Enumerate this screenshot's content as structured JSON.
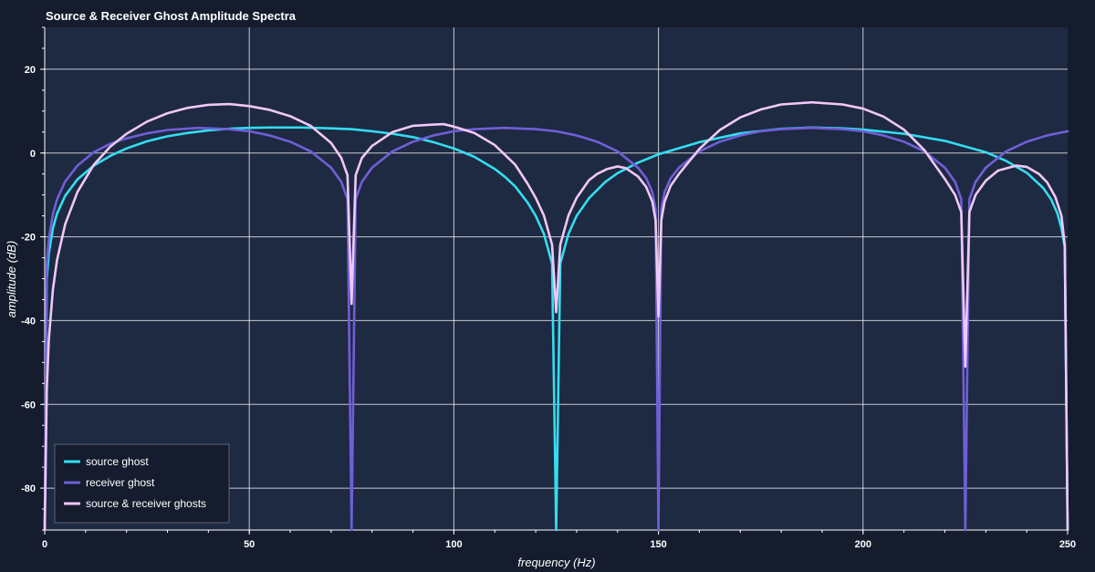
{
  "chart_data": {
    "type": "line",
    "title": "Source & Receiver Ghost Amplitude Spectra",
    "xlabel": "frequency (Hz)",
    "ylabel": "amplitude (dB)",
    "xlim": [
      0,
      250
    ],
    "ylim": [
      -90,
      30
    ],
    "xticks": [
      0,
      50,
      100,
      150,
      200,
      250
    ],
    "yticks": [
      20,
      0,
      -20,
      -40,
      -60,
      -80
    ],
    "x_tick_labels": [
      "0",
      "50",
      "100",
      "150",
      "200",
      "250"
    ],
    "y_tick_labels": [
      "20",
      "0",
      "-20",
      "-40",
      "-60",
      "-80"
    ],
    "grid": true,
    "legend_position": "bottom-left",
    "colors": {
      "background": "#151c2e",
      "plot_background": "#1e2942",
      "grid": "#ffffff",
      "text": "#ffffff"
    },
    "series": [
      {
        "name": "source ghost",
        "color": "#33ddf0",
        "x": [
          0,
          0.5,
          1,
          2,
          3,
          5,
          8,
          12,
          16,
          20,
          25,
          30,
          35,
          40,
          45,
          50,
          55,
          62.5,
          70,
          75,
          80,
          85,
          90,
          95,
          100,
          105,
          110,
          112.5,
          115,
          118,
          120,
          122,
          124,
          125,
          126,
          128,
          130,
          133,
          137,
          140,
          145,
          150,
          160,
          170,
          180,
          187.5,
          195,
          200,
          210,
          220,
          230,
          235,
          240,
          244,
          246,
          247.5,
          248.5,
          249.3,
          250
        ],
        "values": [
          -90,
          -30.1,
          -24.0,
          -18.0,
          -14.5,
          -10.2,
          -6.3,
          -3.0,
          -0.7,
          1.1,
          2.8,
          4.0,
          4.8,
          5.4,
          5.8,
          6.0,
          6.1,
          6.1,
          5.9,
          5.7,
          5.2,
          4.6,
          3.8,
          2.6,
          1.1,
          -0.9,
          -3.8,
          -5.7,
          -8.0,
          -11.8,
          -15.0,
          -19.3,
          -26.4,
          -90,
          -26.4,
          -19.3,
          -15.0,
          -10.8,
          -6.9,
          -4.8,
          -2.3,
          -0.3,
          2.6,
          4.7,
          5.8,
          6.1,
          5.9,
          5.6,
          4.6,
          2.9,
          0.2,
          -1.9,
          -4.7,
          -8.3,
          -11.1,
          -14.4,
          -18.0,
          -22.4,
          -90
        ]
      },
      {
        "name": "receiver ghost",
        "color": "#6f5fd6",
        "x": [
          0,
          0.5,
          1,
          2,
          3,
          5,
          8,
          12,
          16,
          20,
          25,
          30,
          37.5,
          45,
          50,
          55,
          60,
          65,
          70,
          72.5,
          74,
          75,
          76,
          77.5,
          80,
          85,
          90,
          95,
          100,
          105,
          112.5,
          120,
          125,
          130,
          135,
          140,
          145,
          147,
          148.5,
          149.3,
          150,
          150.7,
          151.5,
          153,
          155,
          160,
          165,
          170,
          175,
          180,
          187.5,
          195,
          200,
          205,
          210,
          215,
          220,
          222.5,
          224,
          225,
          226,
          227.5,
          230,
          235,
          240,
          245,
          250
        ],
        "values": [
          -90,
          -26.6,
          -20.6,
          -14.6,
          -11.1,
          -6.8,
          -3.0,
          0.2,
          2.2,
          3.5,
          4.7,
          5.5,
          6.0,
          5.7,
          5.2,
          4.2,
          2.7,
          0.4,
          -3.5,
          -6.9,
          -11.0,
          -90,
          -11.0,
          -6.9,
          -3.5,
          0.4,
          2.7,
          4.2,
          5.2,
          5.7,
          6.0,
          5.7,
          5.2,
          4.2,
          2.7,
          0.4,
          -3.5,
          -6.0,
          -9.3,
          -13.4,
          -90,
          -13.4,
          -9.3,
          -6.0,
          -3.5,
          0.4,
          2.7,
          4.2,
          5.2,
          5.7,
          6.0,
          5.7,
          5.2,
          4.2,
          2.7,
          0.4,
          -3.5,
          -6.9,
          -11.0,
          -90,
          -11.0,
          -6.9,
          -3.5,
          0.4,
          2.7,
          4.2,
          5.2
        ]
      },
      {
        "name": "source & receiver ghosts",
        "color": "#f0c8f8",
        "x": [
          0,
          0.5,
          1,
          2,
          3,
          5,
          8,
          12,
          16,
          20,
          25,
          30,
          35,
          40,
          45,
          50,
          55,
          60,
          65,
          70,
          72.5,
          74,
          75,
          76,
          77.5,
          80,
          85,
          90,
          95,
          97.5,
          100,
          105,
          110,
          115,
          118,
          120,
          122,
          124,
          125,
          126,
          128,
          130,
          133,
          135,
          137.5,
          140,
          142,
          145,
          147,
          148.5,
          149.3,
          150,
          150.7,
          151.5,
          153,
          155,
          160,
          165,
          170,
          175,
          180,
          187.5,
          195,
          200,
          205,
          210,
          215,
          220,
          222.5,
          224,
          225,
          226,
          227.5,
          230,
          233,
          237.5,
          240,
          243,
          245,
          247,
          248.5,
          249.3,
          250
        ],
        "values": [
          -90,
          -56.7,
          -44.6,
          -32.6,
          -25.6,
          -17.0,
          -9.3,
          -2.8,
          1.5,
          4.6,
          7.5,
          9.5,
          10.8,
          11.5,
          11.7,
          11.2,
          10.3,
          8.8,
          6.5,
          2.4,
          -1.2,
          -5.3,
          -36,
          -5.3,
          -1.2,
          1.7,
          5.0,
          6.5,
          6.8,
          6.9,
          6.3,
          4.8,
          1.9,
          -2.8,
          -7.3,
          -10.7,
          -14.9,
          -21.9,
          -38,
          -21.9,
          -14.9,
          -10.7,
          -6.5,
          -5.0,
          -3.8,
          -3.2,
          -3.6,
          -5.6,
          -8.1,
          -11.6,
          -16.0,
          -39,
          -16.0,
          -11.6,
          -7.8,
          -5.0,
          1.0,
          5.5,
          8.5,
          10.4,
          11.6,
          12.1,
          11.6,
          10.6,
          8.7,
          5.6,
          0.7,
          -6.2,
          -10.0,
          -14.1,
          -51,
          -14.1,
          -10.0,
          -6.6,
          -4.2,
          -3.0,
          -3.3,
          -5.0,
          -7.0,
          -10.5,
          -15.0,
          -22.0,
          -90
        ]
      }
    ]
  }
}
